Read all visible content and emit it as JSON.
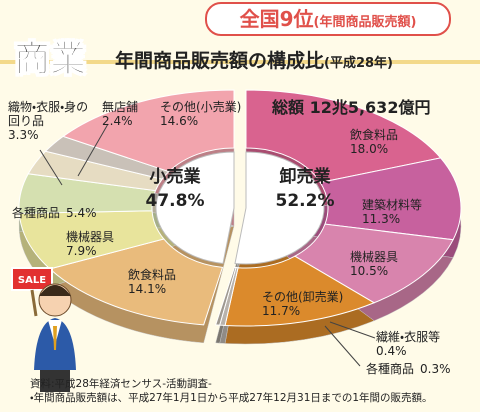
{
  "chart_data": {
    "type": "pie",
    "title": "商業",
    "subtitle": "年間商品販売額の構成比",
    "year": "(平成28年)",
    "badge": {
      "rank": "全国9位",
      "note": "(年間商品販売額)"
    },
    "total": "総額 12兆5,632億円",
    "sign": "SALE",
    "groups": [
      {
        "name": "卸売業",
        "value": 52.2,
        "value_label": "52.2%",
        "categories": [
          "飲食料品",
          "建築材料等",
          "機械器具",
          "その他(卸売業)",
          "繊維・衣服等",
          "各種商品"
        ],
        "values": [
          18.0,
          11.3,
          10.5,
          11.7,
          0.4,
          0.3
        ],
        "value_labels": [
          "18.0%",
          "11.3%",
          "10.5%",
          "11.7%",
          "0.4%",
          "0.3%"
        ],
        "colors": [
          "#d9638f",
          "#c7619e",
          "#d884ad",
          "#db8a2c",
          "#b8b2ac",
          "#9e9890"
        ]
      },
      {
        "name": "小売業",
        "value": 47.8,
        "value_label": "47.8%",
        "categories": [
          "飲食料品",
          "機械器具",
          "各種商品",
          "織物・衣服・身の回り品",
          "無店舗",
          "その他(小売業)"
        ],
        "values": [
          14.1,
          7.9,
          5.4,
          3.3,
          2.4,
          14.6
        ],
        "value_labels": [
          "14.1%",
          "7.9%",
          "5.4%",
          "3.3%",
          "2.4%",
          "14.6%"
        ],
        "colors": [
          "#e9bb7c",
          "#e8e49c",
          "#d5e0b0",
          "#e6dcc2",
          "#c9c1b8",
          "#f2a4ad"
        ]
      }
    ],
    "notes": [
      "資料:平成28年経済センサス-活動調査-",
      "・年間商品販売額は、平成27年1月1日から平成27年12月31日までの1年間の販売額。"
    ]
  }
}
